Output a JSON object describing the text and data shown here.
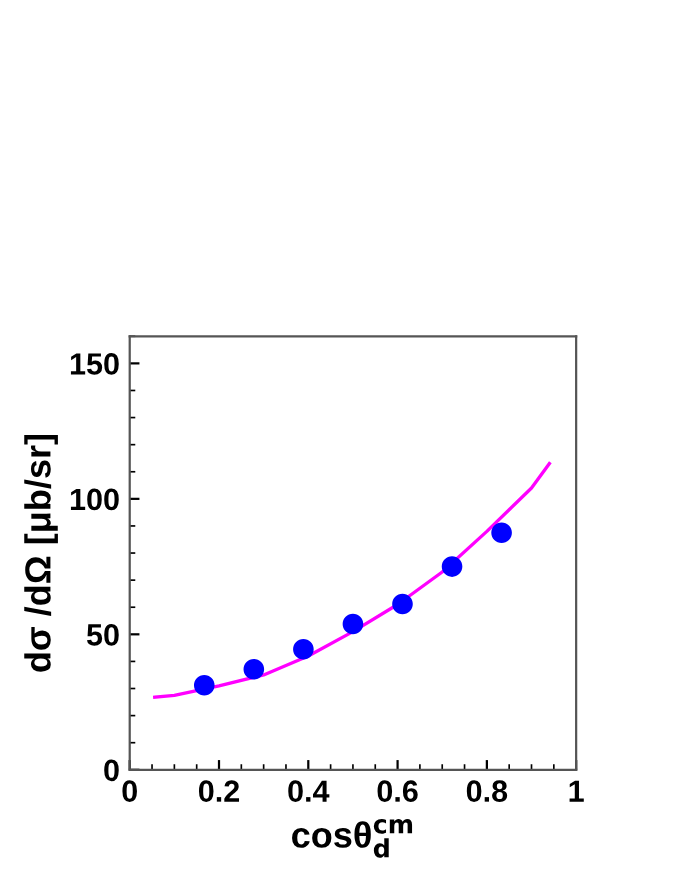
{
  "chart_data": {
    "type": "scatter",
    "xlabel": "cosθ$^{cm}$$_{d}$",
    "ylabel": "dσ /dΩ [μb/sr]",
    "xlim": [
      0,
      1
    ],
    "ylim": [
      0,
      160
    ],
    "xticks": [
      0,
      0.2,
      0.4,
      0.6,
      0.8,
      1
    ],
    "yticks": [
      0,
      50,
      100,
      150
    ],
    "grid": false,
    "legend": false,
    "series": [
      {
        "color": "#0000ff",
        "marker": "circle",
        "x": [
          0.167,
          0.278,
          0.389,
          0.5,
          0.611,
          0.722,
          0.833
        ],
        "values": [
          31.2,
          37.1,
          44.5,
          53.8,
          61.2,
          75,
          87.5
        ]
      },
      {
        "type": "line",
        "color": "#ff00ff",
        "marker": "none",
        "line_style": "solid",
        "x": [
          0.056,
          0.1,
          0.2,
          0.3,
          0.4,
          0.5,
          0.6,
          0.7,
          0.8,
          0.9,
          0.94
        ],
        "values": [
          26.8,
          27.5,
          31,
          35,
          42,
          51,
          61,
          73,
          88,
          104,
          113
        ]
      }
    ]
  }
}
